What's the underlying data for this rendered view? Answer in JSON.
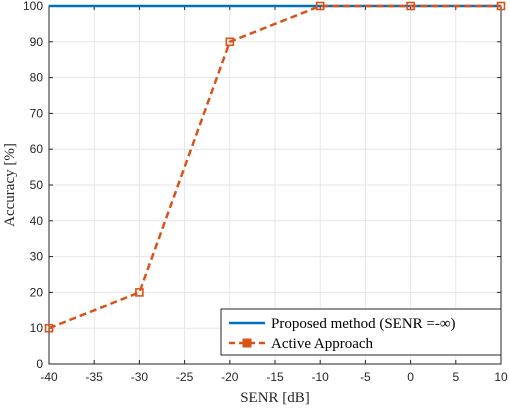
{
  "chart_data": {
    "type": "line",
    "title": "",
    "xlabel": "SENR [dB]",
    "ylabel": "Accuracy [%]",
    "xlim": [
      -40,
      10
    ],
    "ylim": [
      0,
      100
    ],
    "xticks": [
      -40,
      -35,
      -30,
      -25,
      -20,
      -15,
      -10,
      -5,
      0,
      5,
      10
    ],
    "yticks": [
      0,
      10,
      20,
      30,
      40,
      50,
      60,
      70,
      80,
      90,
      100
    ],
    "grid": true,
    "legend_position": "bottom-right",
    "series": [
      {
        "name": "Proposed method (SENR =-∞)",
        "x": [
          -40,
          10
        ],
        "y": [
          100,
          100
        ],
        "color": "#0072BD",
        "line_style": "solid",
        "marker": "none"
      },
      {
        "name": "Active Approach",
        "x": [
          -40,
          -30,
          -20,
          -10,
          0,
          10
        ],
        "y": [
          10,
          20,
          90,
          100,
          100,
          100
        ],
        "color": "#D95319",
        "line_style": "dashed",
        "marker": "square"
      }
    ]
  }
}
